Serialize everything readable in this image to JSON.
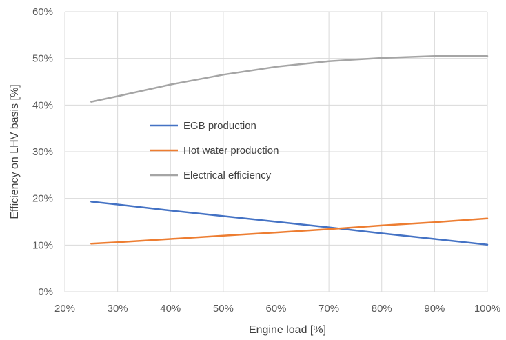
{
  "chart_data": {
    "type": "line",
    "title": "",
    "xlabel": "Engine load [%]",
    "ylabel": "Efficiency on LHV basis [%]",
    "xlim": [
      20,
      100
    ],
    "ylim": [
      0,
      60
    ],
    "x_ticks": [
      "20%",
      "30%",
      "40%",
      "50%",
      "60%",
      "70%",
      "80%",
      "90%",
      "100%"
    ],
    "y_ticks": [
      "0%",
      "10%",
      "20%",
      "30%",
      "40%",
      "50%",
      "60%"
    ],
    "grid": true,
    "legend_position": "center-left",
    "x": [
      25,
      30,
      40,
      50,
      60,
      70,
      80,
      90,
      100
    ],
    "series": [
      {
        "name": "EGB production",
        "color": "#4472c4",
        "values": [
          19.3,
          18.7,
          17.4,
          16.2,
          15.0,
          13.8,
          12.5,
          11.3,
          10.1
        ]
      },
      {
        "name": "Hot water production",
        "color": "#ed7d31",
        "values": [
          10.3,
          10.6,
          11.3,
          12.0,
          12.7,
          13.4,
          14.2,
          14.9,
          15.7
        ]
      },
      {
        "name": "Electrical efficiency",
        "color": "#a5a5a5",
        "values": [
          40.7,
          41.9,
          44.4,
          46.5,
          48.2,
          49.4,
          50.1,
          50.5,
          50.5
        ]
      }
    ]
  }
}
